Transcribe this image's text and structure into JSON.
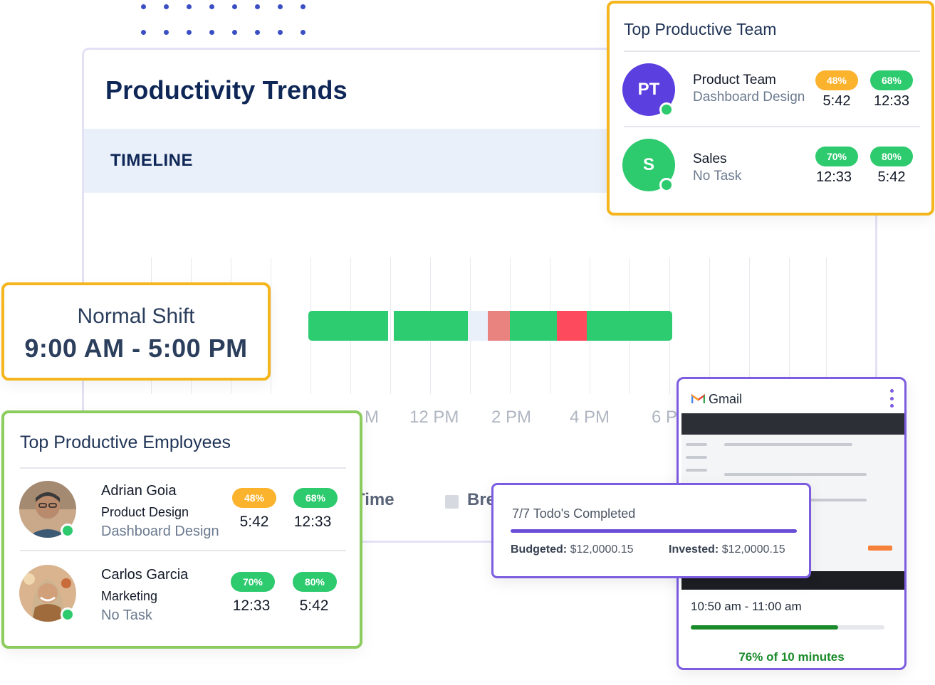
{
  "main": {
    "title": "Productivity Trends",
    "timeline_label": "TIMELINE",
    "ticks": [
      "M",
      "12 PM",
      "2 PM",
      "4 PM",
      "6 P"
    ],
    "legend_time": "e Time",
    "legend_break": "Bre"
  },
  "shift": {
    "title": "Normal Shift",
    "time": "9:00 AM - 5:00 PM"
  },
  "team": {
    "title": "Top Productive Team",
    "rows": [
      {
        "initials": "PT",
        "name": "Product Team",
        "sub": "Dashboard Design",
        "pct1": "48%",
        "val1": "5:42",
        "pct2": "68%",
        "val2": "12:33"
      },
      {
        "initials": "S",
        "name": "Sales",
        "sub": "No Task",
        "pct1": "70%",
        "val1": "12:33",
        "pct2": "80%",
        "val2": "5:42"
      }
    ]
  },
  "employees": {
    "title": "Top Productive Employees",
    "rows": [
      {
        "name": "Adrian Goia",
        "role": "Product Design",
        "task": "Dashboard Design",
        "pct1": "48%",
        "val1": "5:42",
        "pct2": "68%",
        "val2": "12:33"
      },
      {
        "name": "Carlos Garcia",
        "role": "Marketing",
        "task": "No Task",
        "pct1": "70%",
        "val1": "12:33",
        "pct2": "80%",
        "val2": "5:42"
      }
    ]
  },
  "gmail": {
    "label": "Gmail",
    "time_range": "10:50 am - 11:00 am",
    "progress": 0.76,
    "progress_label": "76% of 10 minutes"
  },
  "todo": {
    "title": "7/7 Todo's Completed",
    "budget_label": "Budgeted:",
    "budget_value": "$12,0000.15",
    "invested_label": "Invested:",
    "invested_value": "$12,0000.15"
  },
  "colors": {
    "productive": "#2ecc71",
    "break": "#e9f0fa",
    "idle": "#e9837f",
    "unproductive": "#fd4a5c",
    "accent_orange": "#f4b51d",
    "accent_purple": "#7c5ce0",
    "accent_green": "#8ccc5f"
  }
}
